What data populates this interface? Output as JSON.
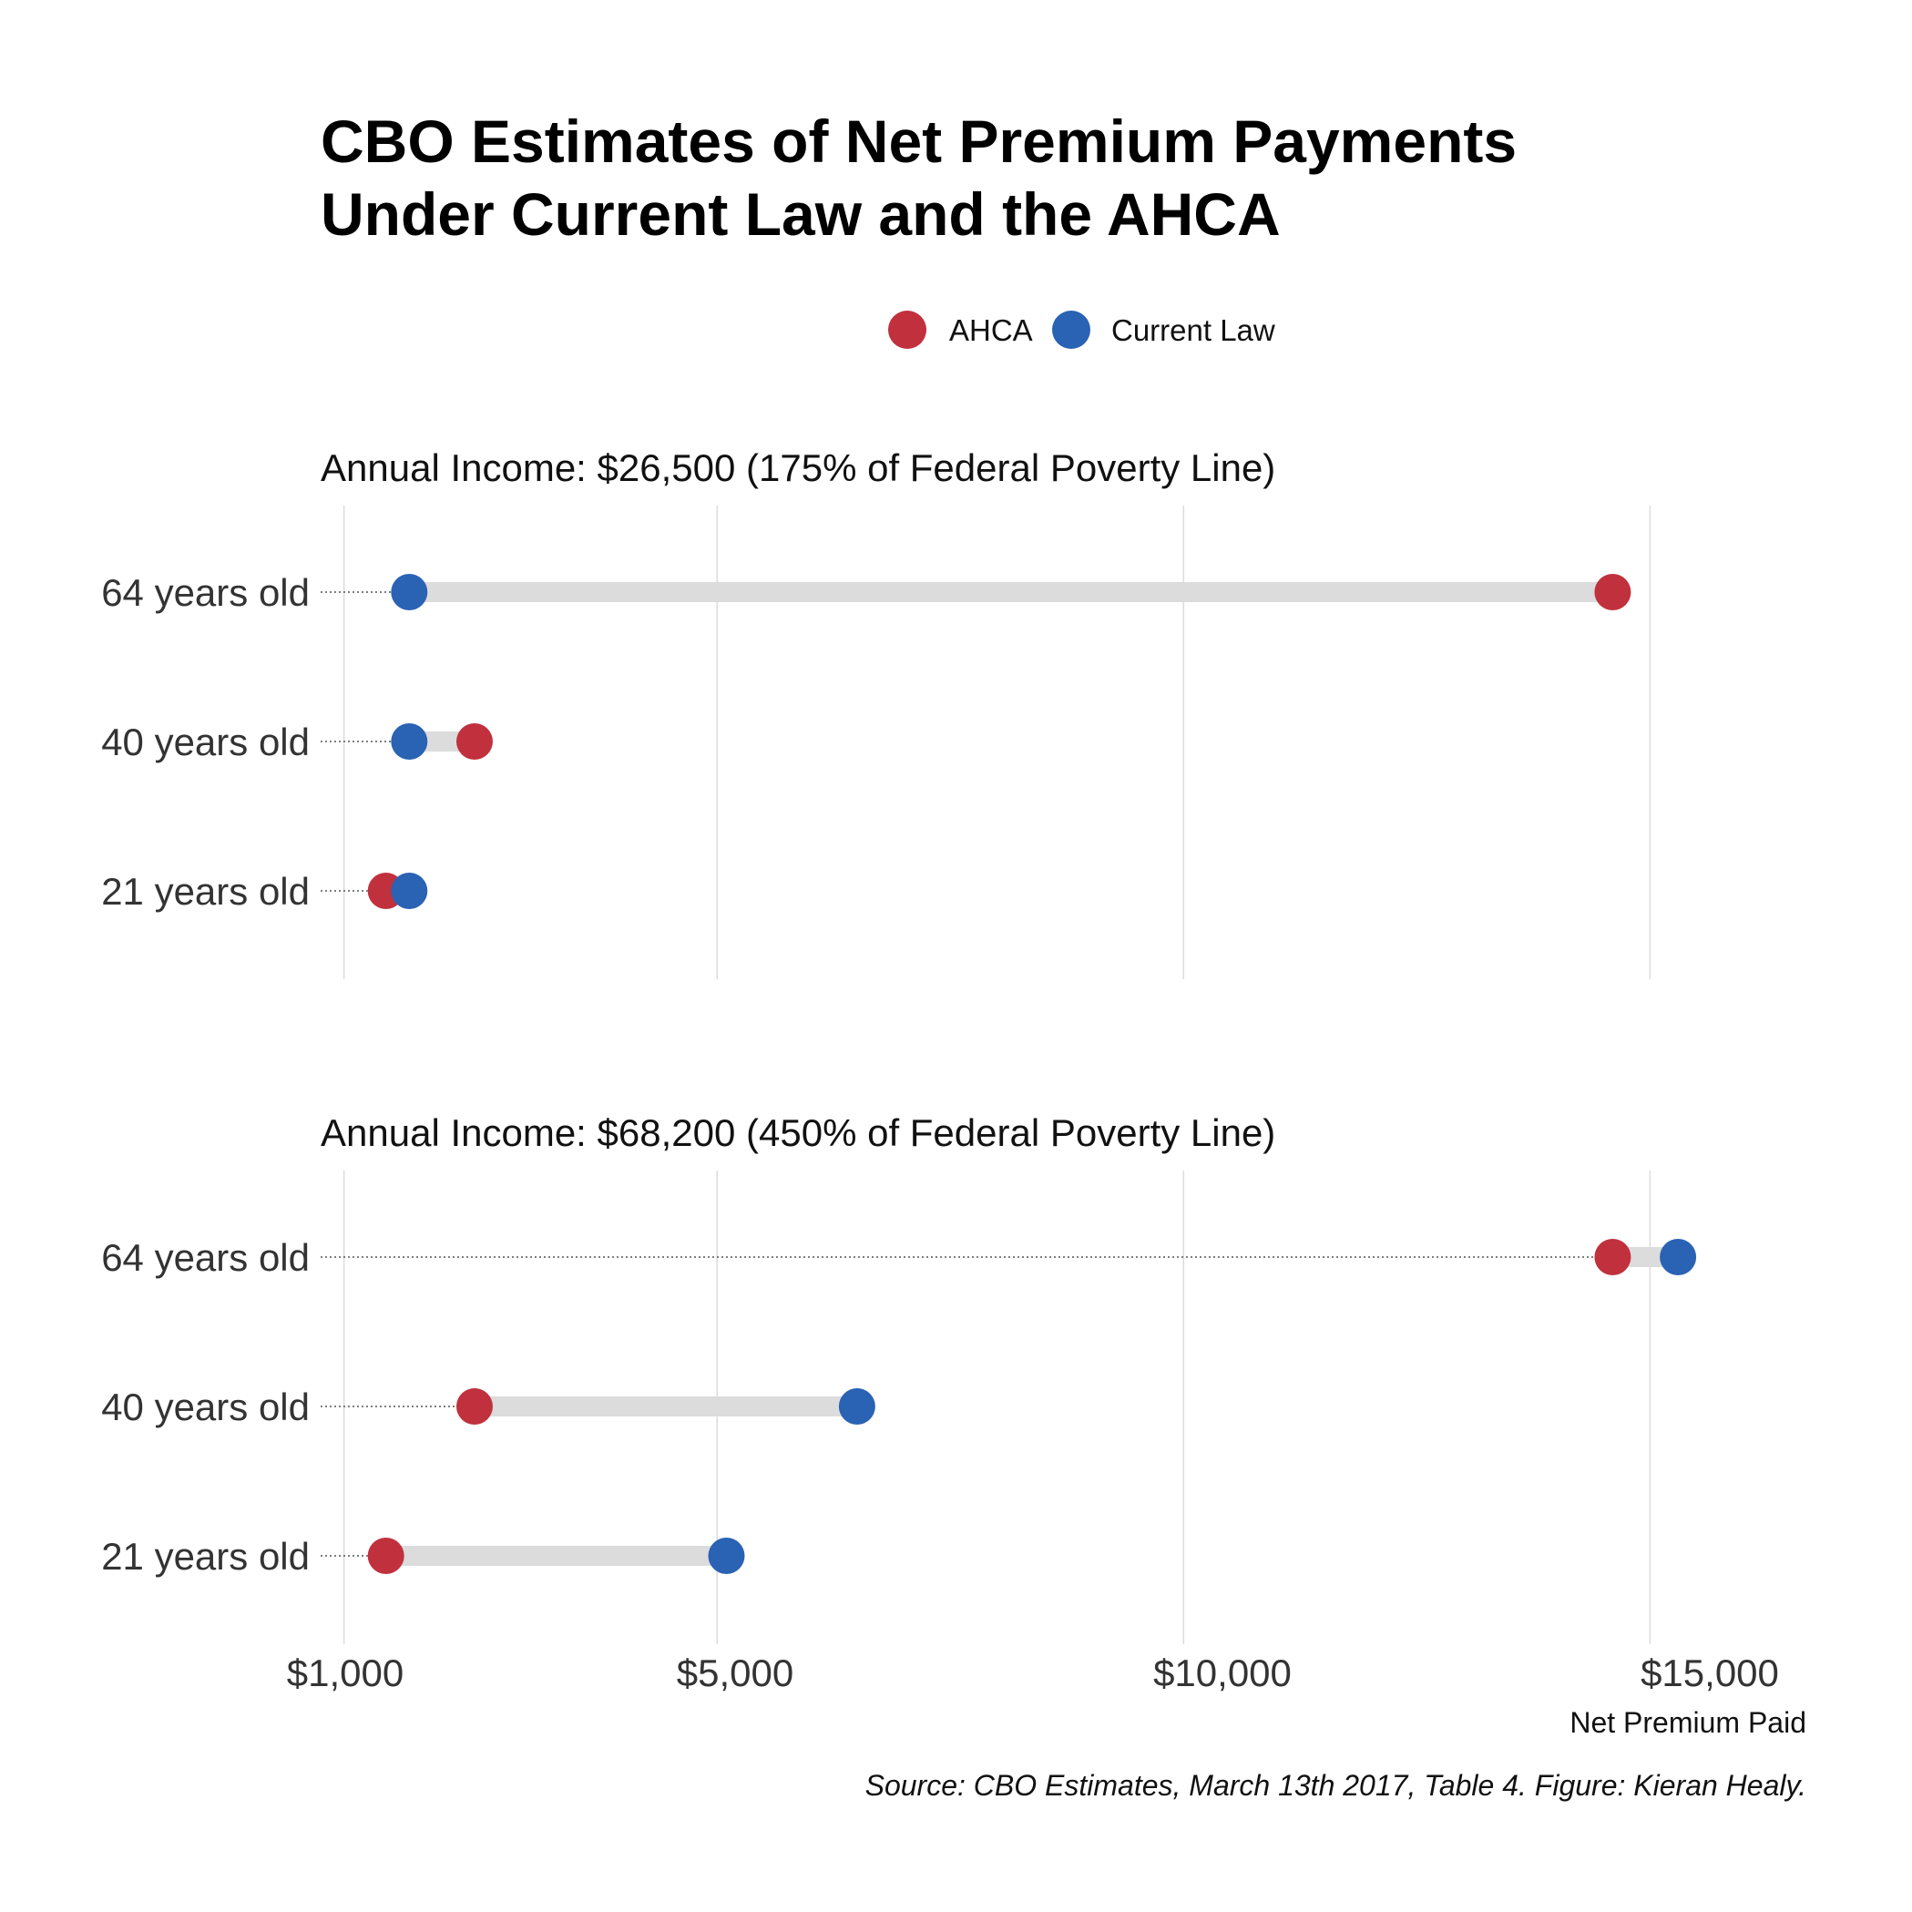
{
  "title_lines": [
    "CBO Estimates of Net Premium Payments",
    "Under Current Law and the AHCA"
  ],
  "legend": [
    {
      "label": "AHCA",
      "color": "#c0313d"
    },
    {
      "label": "Current Law",
      "color": "#2a62b4"
    }
  ],
  "caption": "Source: CBO Estimates, March 13th 2017, Table 4. Figure: Kieran Healy.",
  "chart_data": {
    "type": "dumbbell",
    "xlabel": "Net Premium Paid",
    "xlim": [
      750,
      16500
    ],
    "xticks": [
      1000,
      5000,
      10000,
      15000
    ],
    "xtick_labels": [
      "$1,000",
      "$5,000",
      "$10,000",
      "$15,000"
    ],
    "grid": true,
    "legend_position": "top",
    "categories": [
      "64 years old",
      "40 years old",
      "21 years old"
    ],
    "series": [
      "AHCA",
      "Current Law"
    ],
    "panels": [
      {
        "title": "Annual Income: $26,500 (175% of Federal Poverty Line)",
        "rows": [
          {
            "category": "64 years old",
            "AHCA": 14600,
            "Current Law": 1700
          },
          {
            "category": "40 years old",
            "AHCA": 2400,
            "Current Law": 1700
          },
          {
            "category": "21 years old",
            "AHCA": 1450,
            "Current Law": 1700
          }
        ]
      },
      {
        "title": "Annual Income: $68,200 (450% of Federal Poverty Line)",
        "rows": [
          {
            "category": "64 years old",
            "AHCA": 14600,
            "Current Law": 15300
          },
          {
            "category": "40 years old",
            "AHCA": 2400,
            "Current Law": 6500
          },
          {
            "category": "21 years old",
            "AHCA": 1450,
            "Current Law": 5100
          }
        ]
      }
    ]
  }
}
